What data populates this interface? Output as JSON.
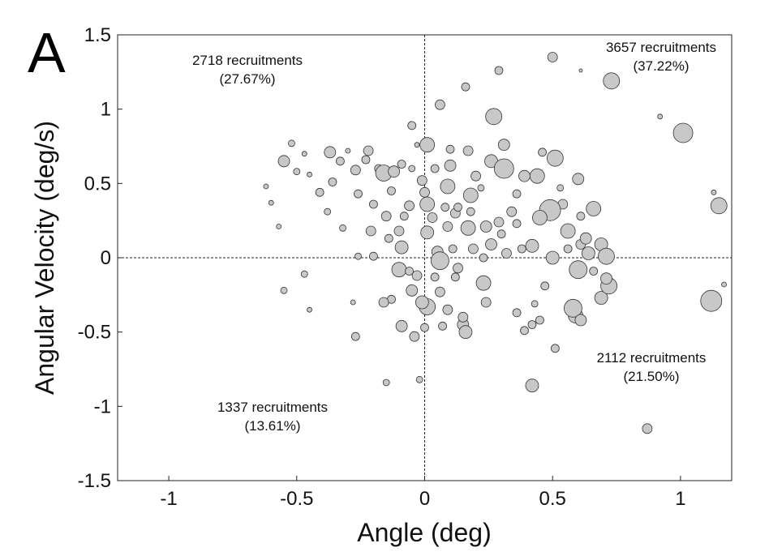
{
  "panel_label": "A",
  "chart_data": {
    "type": "scatter",
    "title": "",
    "xlabel": "Angle (deg)",
    "ylabel": "Angular Velocity (deg/s)",
    "xlim": [
      -1.2,
      1.2
    ],
    "ylim": [
      -1.5,
      1.5
    ],
    "x_ticks": [
      -1,
      -0.5,
      0,
      0.5,
      1
    ],
    "x_tick_labels": [
      "-1",
      "-0.5",
      "0",
      "0.5",
      "1"
    ],
    "y_ticks": [
      -1.5,
      -1,
      -0.5,
      0,
      0.5,
      1,
      1.5
    ],
    "y_tick_labels": [
      "-1.5",
      "-1",
      "-0.5",
      "0",
      "0.5",
      "1",
      "1.5"
    ],
    "grid": false,
    "reference_lines": {
      "x": 0,
      "y": 0,
      "style": "dashed"
    },
    "marker_color": "#c8c8c8",
    "marker_edge": "#333333",
    "annotations": [
      {
        "quadrant": "upper-left",
        "line1": "2718 recruitments",
        "line2": "(27.67%)"
      },
      {
        "quadrant": "upper-right",
        "line1": "3657 recruitments",
        "line2": "(37.22%)"
      },
      {
        "quadrant": "lower-right",
        "line1": "2112 recruitments",
        "line2": "(21.50%)"
      },
      {
        "quadrant": "lower-left",
        "line1": "1337 recruitments",
        "line2": "(13.61%)"
      }
    ],
    "points": [
      {
        "x": -0.55,
        "y": 0.65,
        "s": 7
      },
      {
        "x": -0.52,
        "y": 0.77,
        "s": 4
      },
      {
        "x": -0.47,
        "y": 0.7,
        "s": 3
      },
      {
        "x": -0.37,
        "y": 0.71,
        "s": 7
      },
      {
        "x": -0.33,
        "y": 0.65,
        "s": 5
      },
      {
        "x": -0.3,
        "y": 0.72,
        "s": 3
      },
      {
        "x": -0.27,
        "y": 0.59,
        "s": 6
      },
      {
        "x": -0.23,
        "y": 0.66,
        "s": 5
      },
      {
        "x": -0.22,
        "y": 0.72,
        "s": 6
      },
      {
        "x": -0.18,
        "y": 0.6,
        "s": 5
      },
      {
        "x": -0.16,
        "y": 0.57,
        "s": 10
      },
      {
        "x": -0.12,
        "y": 0.58,
        "s": 7
      },
      {
        "x": -0.09,
        "y": 0.63,
        "s": 5
      },
      {
        "x": -0.05,
        "y": 0.6,
        "s": 4
      },
      {
        "x": -0.03,
        "y": 0.76,
        "s": 3
      },
      {
        "x": -0.05,
        "y": 0.89,
        "s": 5
      },
      {
        "x": 0.01,
        "y": 0.76,
        "s": 9
      },
      {
        "x": 0.06,
        "y": 1.03,
        "s": 6
      },
      {
        "x": 0.1,
        "y": 0.73,
        "s": 5
      },
      {
        "x": 0.1,
        "y": 0.62,
        "s": 7
      },
      {
        "x": 0.09,
        "y": 0.48,
        "s": 9
      },
      {
        "x": 0.17,
        "y": 0.72,
        "s": 6
      },
      {
        "x": 0.16,
        "y": 1.15,
        "s": 5
      },
      {
        "x": 0.27,
        "y": 0.95,
        "s": 10
      },
      {
        "x": 0.29,
        "y": 1.26,
        "s": 5
      },
      {
        "x": 0.5,
        "y": 1.35,
        "s": 6
      },
      {
        "x": 0.73,
        "y": 1.19,
        "s": 10
      },
      {
        "x": 1.01,
        "y": 0.84,
        "s": 12
      },
      {
        "x": 0.92,
        "y": 0.95,
        "s": 3
      },
      {
        "x": 0.61,
        "y": 1.26,
        "s": 2
      },
      {
        "x": 0.31,
        "y": 0.76,
        "s": 7
      },
      {
        "x": 0.26,
        "y": 0.65,
        "s": 8
      },
      {
        "x": 0.31,
        "y": 0.6,
        "s": 12
      },
      {
        "x": 0.39,
        "y": 0.55,
        "s": 7
      },
      {
        "x": 0.44,
        "y": 0.55,
        "s": 9
      },
      {
        "x": 0.51,
        "y": 0.67,
        "s": 10
      },
      {
        "x": 0.46,
        "y": 0.71,
        "s": 5
      },
      {
        "x": 0.6,
        "y": 0.53,
        "s": 7
      },
      {
        "x": 0.66,
        "y": 0.33,
        "s": 9
      },
      {
        "x": 0.54,
        "y": 0.36,
        "s": 6
      },
      {
        "x": 0.49,
        "y": 0.32,
        "s": 13
      },
      {
        "x": 0.45,
        "y": 0.27,
        "s": 9
      },
      {
        "x": 0.56,
        "y": 0.18,
        "s": 9
      },
      {
        "x": 0.42,
        "y": 0.08,
        "s": 8
      },
      {
        "x": 0.56,
        "y": 0.06,
        "s": 5
      },
      {
        "x": 0.61,
        "y": 0.09,
        "s": 6
      },
      {
        "x": 0.64,
        "y": 0.03,
        "s": 8
      },
      {
        "x": 0.69,
        "y": 0.09,
        "s": 8
      },
      {
        "x": 0.71,
        "y": 0.01,
        "s": 10
      },
      {
        "x": 0.5,
        "y": 0.0,
        "s": 8
      },
      {
        "x": 0.38,
        "y": 0.06,
        "s": 5
      },
      {
        "x": 0.32,
        "y": 0.03,
        "s": 6
      },
      {
        "x": 0.26,
        "y": 0.09,
        "s": 7
      },
      {
        "x": 0.23,
        "y": 0.0,
        "s": 5
      },
      {
        "x": 0.19,
        "y": 0.06,
        "s": 6
      },
      {
        "x": 0.17,
        "y": 0.2,
        "s": 9
      },
      {
        "x": 0.24,
        "y": 0.21,
        "s": 7
      },
      {
        "x": 0.29,
        "y": 0.24,
        "s": 6
      },
      {
        "x": 0.34,
        "y": 0.31,
        "s": 6
      },
      {
        "x": 0.36,
        "y": 0.23,
        "s": 5
      },
      {
        "x": 0.18,
        "y": 0.31,
        "s": 5
      },
      {
        "x": 0.12,
        "y": 0.3,
        "s": 6
      },
      {
        "x": 0.08,
        "y": 0.34,
        "s": 5
      },
      {
        "x": 0.18,
        "y": 0.42,
        "s": 9
      },
      {
        "x": 0.09,
        "y": 0.21,
        "s": 6
      },
      {
        "x": 0.03,
        "y": 0.27,
        "s": 6
      },
      {
        "x": 0.01,
        "y": 0.36,
        "s": 9
      },
      {
        "x": 0.0,
        "y": 0.44,
        "s": 6
      },
      {
        "x": 0.01,
        "y": 0.17,
        "s": 8
      },
      {
        "x": 0.05,
        "y": 0.04,
        "s": 7
      },
      {
        "x": 0.06,
        "y": -0.02,
        "s": 11
      },
      {
        "x": 0.11,
        "y": 0.06,
        "s": 5
      },
      {
        "x": 0.13,
        "y": -0.07,
        "s": 6
      },
      {
        "x": 0.04,
        "y": -0.13,
        "s": 5
      },
      {
        "x": 0.12,
        "y": -0.13,
        "s": 5
      },
      {
        "x": 0.06,
        "y": -0.23,
        "s": 6
      },
      {
        "x": 0.01,
        "y": -0.33,
        "s": 10
      },
      {
        "x": -0.01,
        "y": -0.3,
        "s": 8
      },
      {
        "x": 0.09,
        "y": -0.35,
        "s": 6
      },
      {
        "x": 0.07,
        "y": -0.46,
        "s": 5
      },
      {
        "x": 0.15,
        "y": -0.45,
        "s": 7
      },
      {
        "x": 0.16,
        "y": -0.5,
        "s": 8
      },
      {
        "x": 0.15,
        "y": -0.4,
        "s": 6
      },
      {
        "x": 0.23,
        "y": -0.17,
        "s": 9
      },
      {
        "x": 0.24,
        "y": -0.3,
        "s": 6
      },
      {
        "x": 0.36,
        "y": -0.37,
        "s": 5
      },
      {
        "x": 0.39,
        "y": -0.49,
        "s": 5
      },
      {
        "x": 0.42,
        "y": -0.45,
        "s": 5
      },
      {
        "x": 0.43,
        "y": -0.31,
        "s": 4
      },
      {
        "x": 0.45,
        "y": -0.42,
        "s": 5
      },
      {
        "x": 0.51,
        "y": -0.61,
        "s": 5
      },
      {
        "x": 0.42,
        "y": -0.86,
        "s": 8
      },
      {
        "x": 0.59,
        "y": -0.39,
        "s": 9
      },
      {
        "x": 0.58,
        "y": -0.34,
        "s": 11
      },
      {
        "x": 0.61,
        "y": -0.42,
        "s": 7
      },
      {
        "x": 0.69,
        "y": -0.27,
        "s": 8
      },
      {
        "x": 0.72,
        "y": -0.19,
        "s": 10
      },
      {
        "x": 0.71,
        "y": -0.14,
        "s": 7
      },
      {
        "x": 0.66,
        "y": -0.09,
        "s": 5
      },
      {
        "x": 0.6,
        "y": -0.08,
        "s": 11
      },
      {
        "x": 0.47,
        "y": -0.19,
        "s": 5
      },
      {
        "x": 0.87,
        "y": -1.15,
        "s": 6
      },
      {
        "x": 1.12,
        "y": -0.29,
        "s": 13
      },
      {
        "x": 1.15,
        "y": 0.35,
        "s": 10
      },
      {
        "x": 1.13,
        "y": 0.44,
        "s": 3
      },
      {
        "x": 1.17,
        "y": -0.18,
        "s": 3
      },
      {
        "x": -0.09,
        "y": 0.07,
        "s": 8
      },
      {
        "x": -0.1,
        "y": 0.18,
        "s": 6
      },
      {
        "x": -0.15,
        "y": 0.28,
        "s": 6
      },
      {
        "x": -0.14,
        "y": 0.13,
        "s": 5
      },
      {
        "x": -0.08,
        "y": 0.28,
        "s": 5
      },
      {
        "x": -0.06,
        "y": 0.35,
        "s": 6
      },
      {
        "x": -0.13,
        "y": 0.45,
        "s": 5
      },
      {
        "x": -0.2,
        "y": 0.36,
        "s": 5
      },
      {
        "x": -0.26,
        "y": 0.43,
        "s": 5
      },
      {
        "x": -0.21,
        "y": 0.18,
        "s": 6
      },
      {
        "x": -0.2,
        "y": 0.01,
        "s": 5
      },
      {
        "x": -0.1,
        "y": -0.08,
        "s": 9
      },
      {
        "x": -0.06,
        "y": -0.09,
        "s": 5
      },
      {
        "x": -0.03,
        "y": -0.12,
        "s": 6
      },
      {
        "x": -0.05,
        "y": -0.22,
        "s": 7
      },
      {
        "x": -0.13,
        "y": -0.28,
        "s": 5
      },
      {
        "x": -0.16,
        "y": -0.3,
        "s": 6
      },
      {
        "x": -0.09,
        "y": -0.46,
        "s": 7
      },
      {
        "x": -0.04,
        "y": -0.53,
        "s": 6
      },
      {
        "x": 0.0,
        "y": -0.47,
        "s": 5
      },
      {
        "x": -0.02,
        "y": -0.82,
        "s": 4
      },
      {
        "x": -0.15,
        "y": -0.84,
        "s": 4
      },
      {
        "x": -0.27,
        "y": -0.53,
        "s": 5
      },
      {
        "x": -0.26,
        "y": 0.01,
        "s": 4
      },
      {
        "x": -0.32,
        "y": 0.2,
        "s": 4
      },
      {
        "x": -0.38,
        "y": 0.31,
        "s": 4
      },
      {
        "x": -0.41,
        "y": 0.44,
        "s": 5
      },
      {
        "x": -0.36,
        "y": 0.51,
        "s": 5
      },
      {
        "x": -0.45,
        "y": 0.56,
        "s": 3
      },
      {
        "x": -0.5,
        "y": 0.58,
        "s": 4
      },
      {
        "x": -0.47,
        "y": -0.11,
        "s": 4
      },
      {
        "x": -0.55,
        "y": -0.22,
        "s": 4
      },
      {
        "x": -0.57,
        "y": 0.21,
        "s": 3
      },
      {
        "x": -0.6,
        "y": 0.37,
        "s": 3
      },
      {
        "x": -0.62,
        "y": 0.48,
        "s": 3
      },
      {
        "x": -0.28,
        "y": -0.3,
        "s": 3
      },
      {
        "x": -0.45,
        "y": -0.35,
        "s": 3
      },
      {
        "x": 0.04,
        "y": 0.6,
        "s": 5
      },
      {
        "x": -0.01,
        "y": 0.52,
        "s": 6
      },
      {
        "x": 0.13,
        "y": 0.34,
        "s": 5
      },
      {
        "x": 0.2,
        "y": 0.55,
        "s": 6
      },
      {
        "x": 0.22,
        "y": 0.47,
        "s": 4
      },
      {
        "x": 0.36,
        "y": 0.43,
        "s": 5
      },
      {
        "x": 0.53,
        "y": 0.47,
        "s": 4
      },
      {
        "x": 0.61,
        "y": 0.28,
        "s": 5
      },
      {
        "x": 0.63,
        "y": 0.13,
        "s": 7
      },
      {
        "x": 0.3,
        "y": 0.16,
        "s": 5
      }
    ]
  }
}
